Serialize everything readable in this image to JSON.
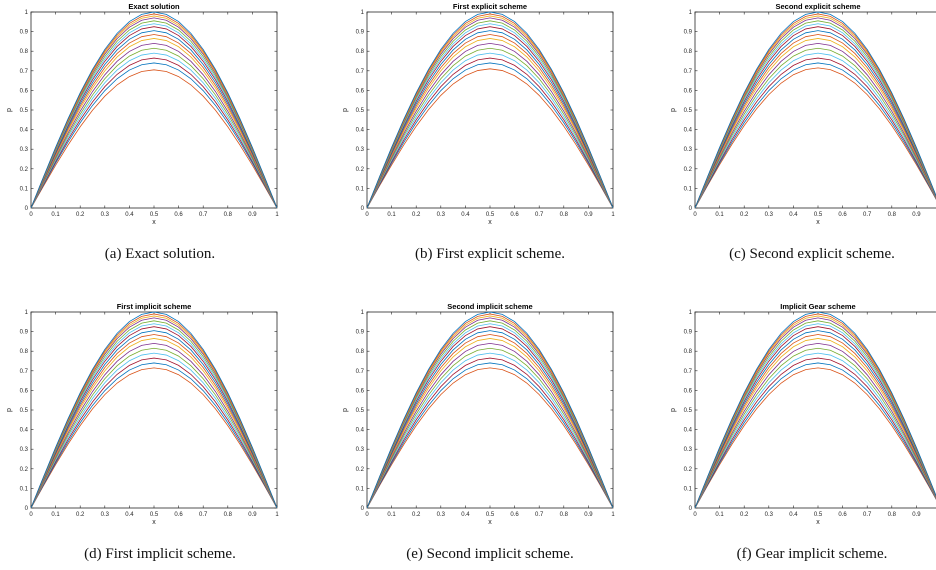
{
  "subfigures": [
    {
      "caption": "(a) Exact solution.",
      "chart": {
        "type": "line",
        "title": "Exact solution",
        "xlabel": "x",
        "ylabel": "p"
      }
    },
    {
      "caption": "(b) First explicit scheme.",
      "chart": {
        "type": "line",
        "title": "First explicit scheme",
        "xlabel": "x",
        "ylabel": "p"
      }
    },
    {
      "caption": "(c) Second explicit scheme.",
      "chart": {
        "type": "line",
        "title": "Second explicit scheme",
        "xlabel": "x",
        "ylabel": "p"
      }
    },
    {
      "caption": "(d) First implicit scheme.",
      "chart": {
        "type": "line",
        "title": "First implicit scheme",
        "xlabel": "x",
        "ylabel": "p"
      }
    },
    {
      "caption": "(e) Second implicit scheme.",
      "chart": {
        "type": "line",
        "title": "Second implicit scheme",
        "xlabel": "x",
        "ylabel": "p"
      }
    },
    {
      "caption": "(f) Gear implicit scheme.",
      "chart": {
        "type": "line",
        "title": "Implicit Gear scheme",
        "xlabel": "x",
        "ylabel": "p"
      }
    }
  ],
  "chart_data": [
    {
      "type": "line",
      "title": "Exact solution",
      "xlabel": "x",
      "ylabel": "p",
      "xlim": [
        0,
        1
      ],
      "ylim": [
        0,
        1
      ],
      "grid": false,
      "xticks": [
        "0",
        "0.1",
        "0.2",
        "0.3",
        "0.4",
        "0.5",
        "0.6",
        "0.7",
        "0.8",
        "0.9",
        "1"
      ],
      "yticks": [
        "0",
        "0.1",
        "0.2",
        "0.3",
        "0.4",
        "0.5",
        "0.6",
        "0.7",
        "0.8",
        "0.9",
        "1"
      ],
      "x": [
        0,
        0.05,
        0.1,
        0.15,
        0.2,
        0.25,
        0.3,
        0.35,
        0.4,
        0.45,
        0.5,
        0.55,
        0.6,
        0.65,
        0.7,
        0.75,
        0.8,
        0.85,
        0.9,
        0.95,
        1
      ],
      "series": [
        {
          "shape": "sine",
          "peak": 1.0
        },
        {
          "shape": "sine",
          "peak": 0.99
        },
        {
          "shape": "sine",
          "peak": 0.98
        },
        {
          "shape": "sine",
          "peak": 0.97
        },
        {
          "shape": "sine",
          "peak": 0.955
        },
        {
          "shape": "sine",
          "peak": 0.94
        },
        {
          "shape": "sine",
          "peak": 0.925
        },
        {
          "shape": "sine",
          "peak": 0.905
        },
        {
          "shape": "sine",
          "peak": 0.885
        },
        {
          "shape": "sine",
          "peak": 0.865
        },
        {
          "shape": "sine",
          "peak": 0.84
        },
        {
          "shape": "sine",
          "peak": 0.815
        },
        {
          "shape": "sine",
          "peak": 0.79
        },
        {
          "shape": "sine",
          "peak": 0.765
        },
        {
          "shape": "sine",
          "peak": 0.74
        },
        {
          "shape": "sine",
          "peak": 0.705
        }
      ]
    },
    {
      "type": "line",
      "title": "First explicit scheme",
      "xlabel": "x",
      "ylabel": "p",
      "xlim": [
        0,
        1
      ],
      "ylim": [
        0,
        1
      ],
      "grid": false,
      "xticks": [
        "0",
        "0.1",
        "0.2",
        "0.3",
        "0.4",
        "0.5",
        "0.6",
        "0.7",
        "0.8",
        "0.9",
        "1"
      ],
      "yticks": [
        "0",
        "0.1",
        "0.2",
        "0.3",
        "0.4",
        "0.5",
        "0.6",
        "0.7",
        "0.8",
        "0.9",
        "1"
      ],
      "x": [
        0,
        0.05,
        0.1,
        0.15,
        0.2,
        0.25,
        0.3,
        0.35,
        0.4,
        0.45,
        0.5,
        0.55,
        0.6,
        0.65,
        0.7,
        0.75,
        0.8,
        0.85,
        0.9,
        0.95,
        1
      ],
      "series": [
        {
          "shape": "sine",
          "peak": 1.0
        },
        {
          "shape": "sine",
          "peak": 0.99
        },
        {
          "shape": "sine",
          "peak": 0.98
        },
        {
          "shape": "sine",
          "peak": 0.97
        },
        {
          "shape": "sine",
          "peak": 0.955
        },
        {
          "shape": "sine",
          "peak": 0.94
        },
        {
          "shape": "sine",
          "peak": 0.925
        },
        {
          "shape": "sine",
          "peak": 0.905
        },
        {
          "shape": "sine",
          "peak": 0.885
        },
        {
          "shape": "sine",
          "peak": 0.865
        },
        {
          "shape": "sine",
          "peak": 0.84
        },
        {
          "shape": "sine",
          "peak": 0.815
        },
        {
          "shape": "sine",
          "peak": 0.79
        },
        {
          "shape": "sine",
          "peak": 0.765
        },
        {
          "shape": "sine",
          "peak": 0.74
        },
        {
          "shape": "sine",
          "peak": 0.71
        }
      ]
    },
    {
      "type": "line",
      "title": "Second explicit scheme",
      "xlabel": "x",
      "ylabel": "p",
      "xlim": [
        0,
        1
      ],
      "ylim": [
        0,
        1
      ],
      "grid": false,
      "xticks": [
        "0",
        "0.1",
        "0.2",
        "0.3",
        "0.4",
        "0.5",
        "0.6",
        "0.7",
        "0.8",
        "0.9"
      ],
      "yticks": [
        "0",
        "0.1",
        "0.2",
        "0.3",
        "0.4",
        "0.5",
        "0.6",
        "0.7",
        "0.8",
        "0.9",
        "1"
      ],
      "x": [
        0,
        0.05,
        0.1,
        0.15,
        0.2,
        0.25,
        0.3,
        0.35,
        0.4,
        0.45,
        0.5,
        0.55,
        0.6,
        0.65,
        0.7,
        0.75,
        0.8,
        0.85,
        0.9,
        0.95,
        1
      ],
      "series": [
        {
          "shape": "sine",
          "peak": 1.0
        },
        {
          "shape": "sine",
          "peak": 0.99
        },
        {
          "shape": "sine",
          "peak": 0.98
        },
        {
          "shape": "sine",
          "peak": 0.97
        },
        {
          "shape": "sine",
          "peak": 0.955
        },
        {
          "shape": "sine",
          "peak": 0.94
        },
        {
          "shape": "sine",
          "peak": 0.925
        },
        {
          "shape": "sine",
          "peak": 0.905
        },
        {
          "shape": "sine",
          "peak": 0.885
        },
        {
          "shape": "sine",
          "peak": 0.865
        },
        {
          "shape": "sine",
          "peak": 0.84
        },
        {
          "shape": "sine",
          "peak": 0.815
        },
        {
          "shape": "sine",
          "peak": 0.79
        },
        {
          "shape": "sine",
          "peak": 0.765
        },
        {
          "shape": "sine",
          "peak": 0.74
        },
        {
          "shape": "sine",
          "peak": 0.715
        }
      ]
    },
    {
      "type": "line",
      "title": "First implicit scheme",
      "xlabel": "x",
      "ylabel": "p",
      "xlim": [
        0,
        1
      ],
      "ylim": [
        0,
        1
      ],
      "grid": false,
      "xticks": [
        "0",
        "0.1",
        "0.2",
        "0.3",
        "0.4",
        "0.5",
        "0.6",
        "0.7",
        "0.8",
        "0.9",
        "1"
      ],
      "yticks": [
        "0",
        "0.1",
        "0.2",
        "0.3",
        "0.4",
        "0.5",
        "0.6",
        "0.7",
        "0.8",
        "0.9",
        "1"
      ],
      "x": [
        0,
        0.05,
        0.1,
        0.15,
        0.2,
        0.25,
        0.3,
        0.35,
        0.4,
        0.45,
        0.5,
        0.55,
        0.6,
        0.65,
        0.7,
        0.75,
        0.8,
        0.85,
        0.9,
        0.95,
        1
      ],
      "series": [
        {
          "shape": "sine",
          "peak": 1.0
        },
        {
          "shape": "sine",
          "peak": 0.99
        },
        {
          "shape": "sine",
          "peak": 0.98
        },
        {
          "shape": "sine",
          "peak": 0.97
        },
        {
          "shape": "sine",
          "peak": 0.955
        },
        {
          "shape": "sine",
          "peak": 0.94
        },
        {
          "shape": "sine",
          "peak": 0.925
        },
        {
          "shape": "sine",
          "peak": 0.905
        },
        {
          "shape": "sine",
          "peak": 0.885
        },
        {
          "shape": "sine",
          "peak": 0.865
        },
        {
          "shape": "sine",
          "peak": 0.84
        },
        {
          "shape": "sine",
          "peak": 0.815
        },
        {
          "shape": "sine",
          "peak": 0.79
        },
        {
          "shape": "sine",
          "peak": 0.765
        },
        {
          "shape": "sine",
          "peak": 0.74
        },
        {
          "shape": "sine",
          "peak": 0.715
        }
      ]
    },
    {
      "type": "line",
      "title": "Second implicit scheme",
      "xlabel": "x",
      "ylabel": "p",
      "xlim": [
        0,
        1
      ],
      "ylim": [
        0,
        1
      ],
      "grid": false,
      "xticks": [
        "0",
        "0.1",
        "0.2",
        "0.3",
        "0.4",
        "0.5",
        "0.6",
        "0.7",
        "0.8",
        "0.9",
        "1"
      ],
      "yticks": [
        "0",
        "0.1",
        "0.2",
        "0.3",
        "0.4",
        "0.5",
        "0.6",
        "0.7",
        "0.8",
        "0.9",
        "1"
      ],
      "x": [
        0,
        0.05,
        0.1,
        0.15,
        0.2,
        0.25,
        0.3,
        0.35,
        0.4,
        0.45,
        0.5,
        0.55,
        0.6,
        0.65,
        0.7,
        0.75,
        0.8,
        0.85,
        0.9,
        0.95,
        1
      ],
      "series": [
        {
          "shape": "sine",
          "peak": 1.0
        },
        {
          "shape": "sine",
          "peak": 0.99
        },
        {
          "shape": "sine",
          "peak": 0.98
        },
        {
          "shape": "sine",
          "peak": 0.97
        },
        {
          "shape": "sine",
          "peak": 0.955
        },
        {
          "shape": "sine",
          "peak": 0.94
        },
        {
          "shape": "sine",
          "peak": 0.925
        },
        {
          "shape": "sine",
          "peak": 0.905
        },
        {
          "shape": "sine",
          "peak": 0.885
        },
        {
          "shape": "sine",
          "peak": 0.865
        },
        {
          "shape": "sine",
          "peak": 0.84
        },
        {
          "shape": "sine",
          "peak": 0.815
        },
        {
          "shape": "sine",
          "peak": 0.79
        },
        {
          "shape": "sine",
          "peak": 0.765
        },
        {
          "shape": "sine",
          "peak": 0.74
        },
        {
          "shape": "sine",
          "peak": 0.715
        }
      ]
    },
    {
      "type": "line",
      "title": "Implicit Gear scheme",
      "xlabel": "x",
      "ylabel": "p",
      "xlim": [
        0,
        1
      ],
      "ylim": [
        0,
        1
      ],
      "grid": false,
      "xticks": [
        "0",
        "0.1",
        "0.2",
        "0.3",
        "0.4",
        "0.5",
        "0.6",
        "0.7",
        "0.8",
        "0.9"
      ],
      "yticks": [
        "0",
        "0.1",
        "0.2",
        "0.3",
        "0.4",
        "0.5",
        "0.6",
        "0.7",
        "0.8",
        "0.9",
        "1"
      ],
      "x": [
        0,
        0.05,
        0.1,
        0.15,
        0.2,
        0.25,
        0.3,
        0.35,
        0.4,
        0.45,
        0.5,
        0.55,
        0.6,
        0.65,
        0.7,
        0.75,
        0.8,
        0.85,
        0.9,
        0.95,
        1
      ],
      "series": [
        {
          "shape": "sine",
          "peak": 1.0
        },
        {
          "shape": "sine",
          "peak": 0.99
        },
        {
          "shape": "sine",
          "peak": 0.98
        },
        {
          "shape": "sine",
          "peak": 0.97
        },
        {
          "shape": "sine",
          "peak": 0.955
        },
        {
          "shape": "sine",
          "peak": 0.94
        },
        {
          "shape": "sine",
          "peak": 0.925
        },
        {
          "shape": "sine",
          "peak": 0.905
        },
        {
          "shape": "sine",
          "peak": 0.885
        },
        {
          "shape": "sine",
          "peak": 0.865
        },
        {
          "shape": "sine",
          "peak": 0.84
        },
        {
          "shape": "sine",
          "peak": 0.815
        },
        {
          "shape": "sine",
          "peak": 0.79
        },
        {
          "shape": "sine",
          "peak": 0.765
        },
        {
          "shape": "sine",
          "peak": 0.74
        },
        {
          "shape": "sine",
          "peak": 0.715
        }
      ]
    }
  ],
  "line_colors": [
    "#0072BD",
    "#D95319",
    "#EDB120",
    "#7E2F8E",
    "#77AC30",
    "#4DBEEE",
    "#A2142F"
  ]
}
